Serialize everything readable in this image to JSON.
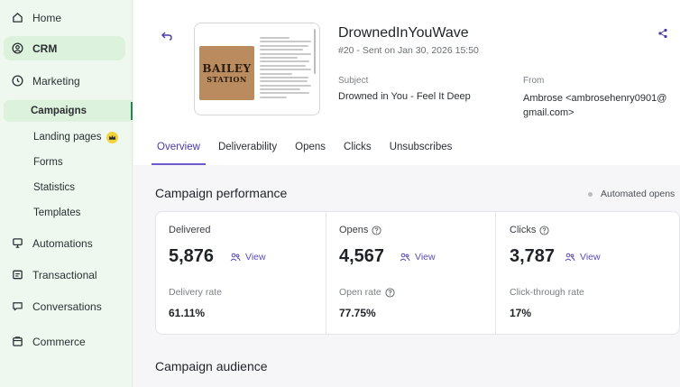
{
  "sidebar": {
    "items": [
      {
        "label": "Home",
        "icon": "home-icon"
      },
      {
        "label": "CRM",
        "icon": "contacts-icon"
      },
      {
        "label": "Marketing",
        "icon": "marketing-icon"
      },
      {
        "label": "Automations",
        "icon": "automations-icon"
      },
      {
        "label": "Transactional",
        "icon": "transactional-icon"
      },
      {
        "label": "Conversations",
        "icon": "conversations-icon"
      },
      {
        "label": "Commerce",
        "icon": "commerce-icon"
      }
    ],
    "marketing_sub": [
      "Campaigns",
      "Landing pages",
      "Forms",
      "Statistics",
      "Templates"
    ]
  },
  "campaign": {
    "name": "DrownedInYouWave",
    "meta": "#20 - Sent on Jan 30, 2026 15:50",
    "subject_label": "Subject",
    "subject": "Drowned in You - Feel It Deep",
    "from_label": "From",
    "from": "Ambrose <ambrosehenry0901@ gmail.com>",
    "thumbnail": {
      "logo_line1": "BAILEY",
      "logo_line2": "STATION"
    }
  },
  "tabs": [
    "Overview",
    "Deliverability",
    "Opens",
    "Clicks",
    "Unsubscribes"
  ],
  "performance": {
    "title": "Campaign performance",
    "automated_label": "Automated opens",
    "view_label": "View",
    "metrics": [
      {
        "label": "Delivered",
        "value": "5,876",
        "sub_label": "Delivery rate",
        "rate": "61.11%"
      },
      {
        "label": "Opens",
        "value": "4,567",
        "sub_label": "Open rate",
        "rate": "77.75%"
      },
      {
        "label": "Clicks",
        "value": "3,787",
        "sub_label": "Click-through rate",
        "rate": "17%"
      }
    ]
  },
  "audience": {
    "title": "Campaign audience"
  },
  "colors": {
    "accent": "#5a4bb8",
    "sidebar_bg": "#eef8ee",
    "active_bg": "#ddf2dc"
  }
}
